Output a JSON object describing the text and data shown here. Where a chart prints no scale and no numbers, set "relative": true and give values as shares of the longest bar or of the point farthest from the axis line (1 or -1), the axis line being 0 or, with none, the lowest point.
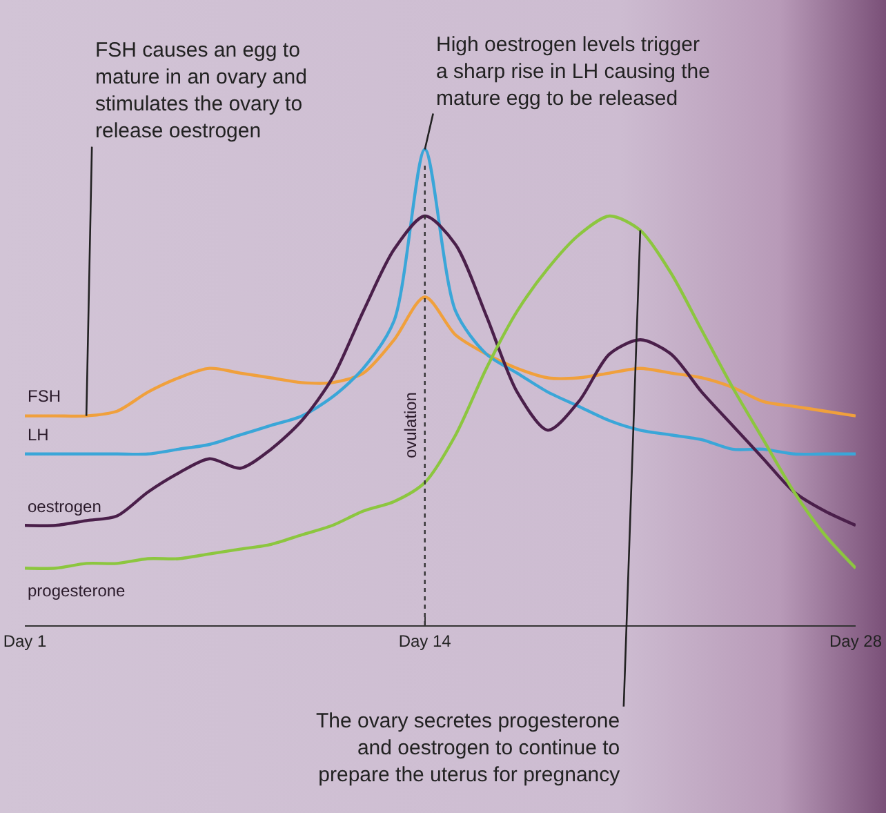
{
  "chart_data": {
    "type": "line",
    "relative": true,
    "categories": [
      "Day 1",
      null,
      null,
      null,
      null,
      null,
      null,
      null,
      null,
      null,
      null,
      null,
      null,
      "Day 14",
      null,
      null,
      null,
      null,
      null,
      null,
      null,
      null,
      null,
      null,
      null,
      null,
      null,
      "Day 28"
    ],
    "marker": "none",
    "line_style": "solid",
    "legend": false,
    "series": [
      {
        "name": "FSH",
        "color": "#f0a03c",
        "values": [
          0.44,
          0.44,
          0.44,
          0.45,
          0.49,
          0.52,
          0.54,
          0.53,
          0.52,
          0.51,
          0.51,
          0.53,
          0.6,
          0.69,
          0.61,
          0.57,
          0.54,
          0.52,
          0.52,
          0.53,
          0.54,
          0.53,
          0.52,
          0.5,
          0.47,
          0.46,
          0.45,
          0.44
        ]
      },
      {
        "name": "LH",
        "color": "#3aa6d8",
        "values": [
          0.36,
          0.36,
          0.36,
          0.36,
          0.36,
          0.37,
          0.38,
          0.4,
          0.42,
          0.44,
          0.48,
          0.54,
          0.64,
          1.0,
          0.66,
          0.57,
          0.53,
          0.49,
          0.46,
          0.43,
          0.41,
          0.4,
          0.39,
          0.37,
          0.37,
          0.36,
          0.36,
          0.36
        ]
      },
      {
        "name": "oestrogen",
        "color": "#4a1f4a",
        "values": [
          0.21,
          0.21,
          0.22,
          0.23,
          0.28,
          0.32,
          0.35,
          0.33,
          0.37,
          0.43,
          0.52,
          0.66,
          0.79,
          0.86,
          0.8,
          0.65,
          0.49,
          0.41,
          0.47,
          0.57,
          0.6,
          0.57,
          0.49,
          0.42,
          0.35,
          0.28,
          0.24,
          0.21
        ]
      },
      {
        "name": "progesterone",
        "color": "#8cc63f",
        "values": [
          0.12,
          0.12,
          0.13,
          0.13,
          0.14,
          0.14,
          0.15,
          0.16,
          0.17,
          0.19,
          0.21,
          0.24,
          0.26,
          0.3,
          0.4,
          0.54,
          0.66,
          0.75,
          0.82,
          0.86,
          0.83,
          0.74,
          0.62,
          0.5,
          0.39,
          0.28,
          0.19,
          0.12
        ]
      }
    ],
    "ref_lines": [
      {
        "axis": "x",
        "value": "Day 14",
        "label": "ovulation",
        "line_style": "dotted",
        "color": "#333333"
      }
    ],
    "annotations": [
      "FSH causes an egg to\nmature in an ovary and\nstimulates the ovary to\nrelease oestrogen",
      {
        "text": "High oestrogen levels trigger\na sharp rise in LH causing the\nmature egg to be released",
        "x": "Day 14",
        "y": 1.0
      },
      "The ovary secretes progesterone\nand oestrogen to continue to\nprepare the uterus for pregnancy"
    ]
  }
}
